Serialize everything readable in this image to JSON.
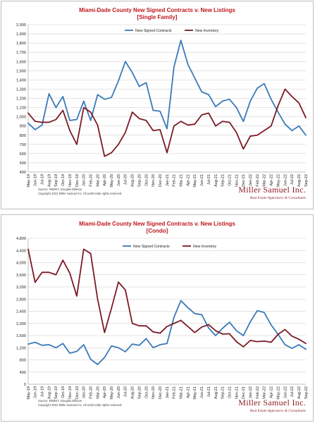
{
  "colors": {
    "title": "#c0161c",
    "contracts": "#3a7ab8",
    "inventory": "#7b1a24",
    "grid": "#c9c9c9",
    "brand": "#8b1a1f"
  },
  "chart_data": [
    {
      "type": "line",
      "title": "Miami-Dade County New Signed Contracts v. New Listings",
      "subtitle": "[Single Family]",
      "ylim": [
        400,
        2000
      ],
      "yticks": [
        "400",
        "500",
        "600",
        "700",
        "800",
        "900",
        "1,000",
        "1,100",
        "1,200",
        "1,300",
        "1,400",
        "1,500",
        "1,600",
        "1,700",
        "1,800",
        "1,900",
        "2,000"
      ],
      "yticks_values": [
        400,
        500,
        600,
        700,
        800,
        900,
        1000,
        1100,
        1200,
        1300,
        1400,
        1500,
        1600,
        1700,
        1800,
        1900,
        2000
      ],
      "categories": [
        "May-19",
        "Jun-19",
        "Jul-19",
        "Aug-19",
        "Sep-19",
        "Oct-19",
        "Nov-19",
        "Dec-19",
        "Jan-20",
        "Feb-20",
        "Mar-20",
        "Apr-20",
        "May-20",
        "Jun-20",
        "Jul-20",
        "Aug-20",
        "Sep-20",
        "Oct-20",
        "Nov-20",
        "Dec-20",
        "Jan-21",
        "Feb-21",
        "Mar-21",
        "Apr-21",
        "May-21",
        "Jun-21",
        "Jul-21",
        "Aug-21",
        "Sep-21",
        "Oct-21",
        "Nov-21",
        "Dec-21",
        "Jan-22",
        "Feb-22",
        "Mar-22",
        "Apr-22",
        "May-22",
        "Jun-22",
        "Jul-22",
        "Aug-22",
        "Sep-22"
      ],
      "series": [
        {
          "name": "New Signed Contracts",
          "values": [
            930,
            860,
            910,
            1250,
            1100,
            1220,
            960,
            970,
            1170,
            960,
            1240,
            1190,
            1210,
            1390,
            1600,
            1480,
            1330,
            1370,
            1070,
            1060,
            870,
            1540,
            1830,
            1570,
            1420,
            1270,
            1240,
            1110,
            1170,
            1190,
            1100,
            950,
            1170,
            1310,
            1360,
            1190,
            1050,
            920,
            850,
            900,
            800
          ]
        },
        {
          "name": "New Inventory",
          "values": [
            1040,
            950,
            940,
            940,
            970,
            1070,
            850,
            700,
            1100,
            1050,
            910,
            570,
            610,
            700,
            830,
            1050,
            980,
            960,
            850,
            860,
            610,
            900,
            950,
            910,
            920,
            1020,
            1040,
            900,
            950,
            940,
            830,
            650,
            790,
            800,
            850,
            900,
            1120,
            1300,
            1220,
            1150,
            990
          ]
        }
      ],
      "source": "Source: REBNY, Douglas Elliman",
      "copyright": "Copyright 2022 Miller Samuel Inc. All world wide rights reserved."
    },
    {
      "type": "line",
      "title": "Miami-Dade County New Signed Contracts v. New Listings",
      "subtitle": "[Condo]",
      "ylim": [
        0,
        4800
      ],
      "yticks": [
        "0",
        "400",
        "800",
        "1,200",
        "1,600",
        "2,000",
        "2,400",
        "2,800",
        "3,200",
        "3,600",
        "4,000",
        "4,400",
        "4,800"
      ],
      "yticks_values": [
        0,
        400,
        800,
        1200,
        1600,
        2000,
        2400,
        2800,
        3200,
        3600,
        4000,
        4400,
        4800
      ],
      "categories": [
        "May-19",
        "Jun-19",
        "Jul-19",
        "Aug-19",
        "Sep-19",
        "Oct-19",
        "Nov-19",
        "Dec-19",
        "Jan-20",
        "Feb-20",
        "Mar-20",
        "Apr-20",
        "May-20",
        "Jun-20",
        "Jul-20",
        "Aug-20",
        "Sep-20",
        "Oct-20",
        "Nov-20",
        "Dec-20",
        "Jan-21",
        "Feb-21",
        "Mar-21",
        "Apr-21",
        "May-21",
        "Jun-21",
        "Jul-21",
        "Aug-21",
        "Sep-21",
        "Oct-21",
        "Nov-21",
        "Dec-21",
        "Jan-22",
        "Feb-22",
        "Mar-22",
        "Apr-22",
        "May-22",
        "Jun-22",
        "Jul-22",
        "Aug-22",
        "Sep-22"
      ],
      "series": [
        {
          "name": "New Signed Contracts",
          "values": [
            1320,
            1380,
            1280,
            1300,
            1200,
            1340,
            1020,
            1080,
            1300,
            820,
            650,
            880,
            1260,
            1200,
            1070,
            1320,
            1280,
            1500,
            1200,
            1300,
            1340,
            2200,
            2750,
            2520,
            2320,
            2290,
            1850,
            1600,
            1840,
            2040,
            1760,
            1600,
            2050,
            2420,
            2360,
            1950,
            1640,
            1300,
            1180,
            1300,
            1150
          ]
        },
        {
          "name": "New Inventory",
          "values": [
            4440,
            3350,
            3680,
            3680,
            3600,
            4080,
            3650,
            2900,
            4440,
            4300,
            2800,
            1700,
            2500,
            3360,
            3100,
            2000,
            1920,
            1920,
            1720,
            1680,
            1900,
            2000,
            2100,
            1900,
            1700,
            1880,
            1960,
            1760,
            1650,
            1660,
            1400,
            1230,
            1440,
            1400,
            1420,
            1380,
            1640,
            1800,
            1580,
            1480,
            1340
          ]
        }
      ],
      "source": "Source: REBNY, Douglas Elliman",
      "copyright": "Copyright 2022 Miller Samuel Inc. All world wide rights reserved."
    }
  ],
  "brand": {
    "name": "Miller Samuel Inc.",
    "tagline": "Real Estate Appraisers & Consultants"
  }
}
